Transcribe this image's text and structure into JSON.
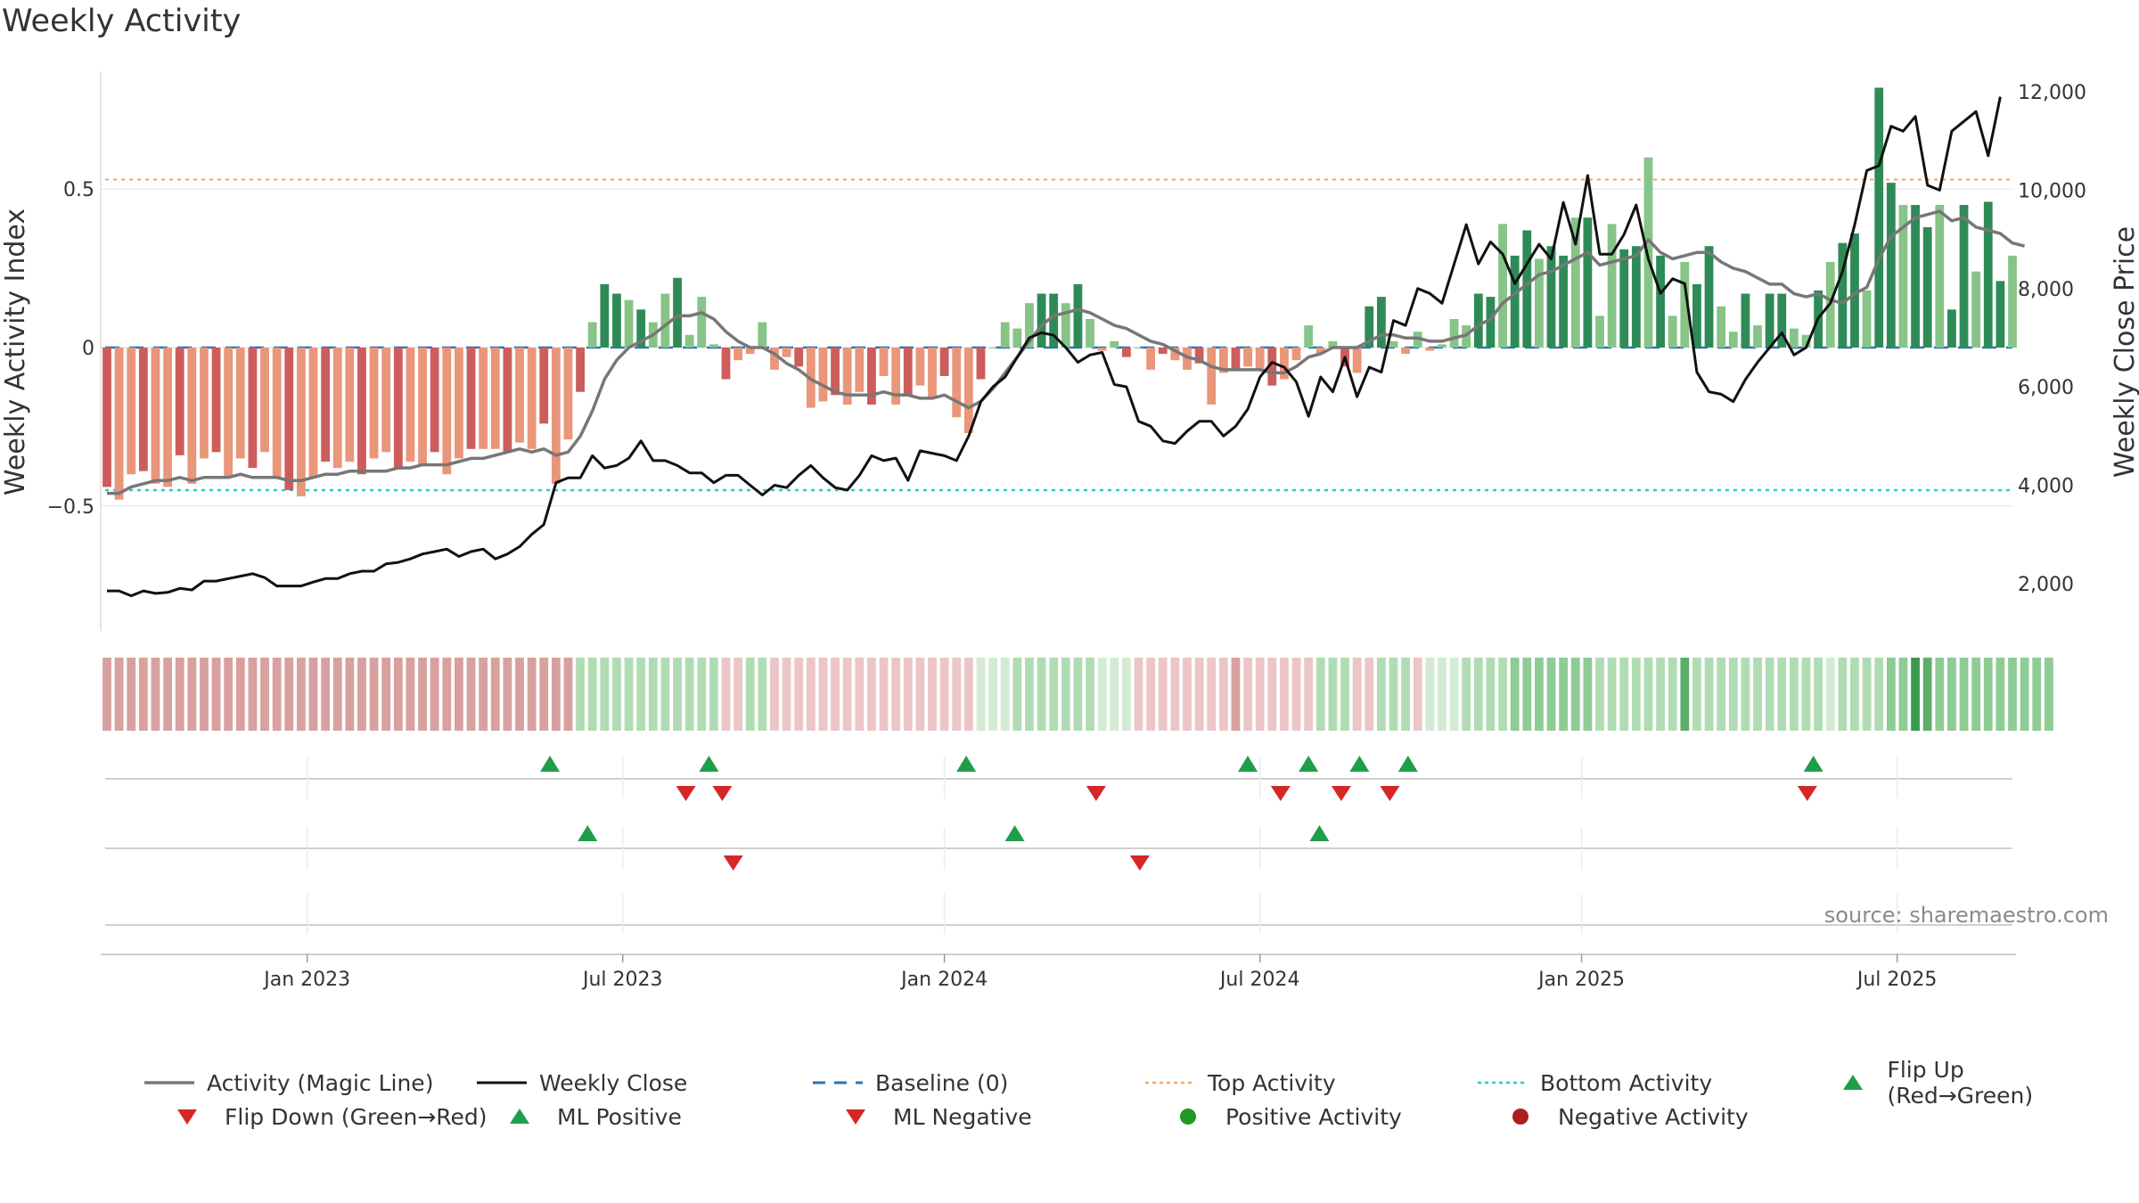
{
  "title": "Weekly Activity",
  "source_label": "source: sharemaestro.com",
  "colors": {
    "magic_line": "#777777",
    "weekly_close": "#111111",
    "baseline": "#2a72b8",
    "top_activity": "#f2a765",
    "bottom_activity": "#2bc9c9",
    "pos_strong": "#2e8b57",
    "pos_light": "#86c487",
    "neg_strong": "#cd5c5c",
    "neg_light": "#e9967a",
    "marker_up": "#1f9e4a",
    "marker_down": "#d62728"
  },
  "legend": [
    {
      "label": "Activity (Magic Line)",
      "kind": "line-solid-gray"
    },
    {
      "label": "Weekly Close",
      "kind": "line-solid-black"
    },
    {
      "label": "Baseline (0)",
      "kind": "line-dash-blue"
    },
    {
      "label": "Top Activity",
      "kind": "line-dot-orange"
    },
    {
      "label": "Bottom Activity",
      "kind": "line-dot-cyan"
    },
    {
      "label": "Flip Up (Red→Green)",
      "kind": "tri-up-green"
    },
    {
      "label": "Flip Down (Green→Red)",
      "kind": "tri-down-red"
    },
    {
      "label": "ML Positive",
      "kind": "tri-up-green"
    },
    {
      "label": "ML Negative",
      "kind": "tri-down-red"
    },
    {
      "label": "Positive Activity",
      "kind": "dot-green"
    },
    {
      "label": "Negative Activity",
      "kind": "dot-red"
    }
  ],
  "chart_data": {
    "type": "bar",
    "title": "Weekly Activity",
    "xlabel": "",
    "ylabel": "Weekly Activity Index",
    "y2label": "Weekly Close Price",
    "ylim": [
      -0.9,
      0.9
    ],
    "y2lim": [
      1000,
      12600
    ],
    "y_ticks": [
      {
        "v": 0.5,
        "label": "0.5"
      },
      {
        "v": 0,
        "label": "0"
      },
      {
        "v": -0.5,
        "label": "−0.5"
      }
    ],
    "y2_ticks": [
      {
        "v": 2000,
        "label": "2,000"
      },
      {
        "v": 4000,
        "label": "4,000"
      },
      {
        "v": 6000,
        "label": "6,000"
      },
      {
        "v": 8000,
        "label": "8,000"
      },
      {
        "v": 10000,
        "label": "10,000"
      },
      {
        "v": 12000,
        "label": "12,000"
      }
    ],
    "x_ticks": [
      {
        "week": 16.5,
        "label": "Jan 2023"
      },
      {
        "week": 42.5,
        "label": "Jul 2023"
      },
      {
        "week": 69,
        "label": "Jan 2024"
      },
      {
        "week": 95,
        "label": "Jul 2024"
      },
      {
        "week": 121.5,
        "label": "Jan 2025"
      },
      {
        "week": 147.5,
        "label": "Jul 2025"
      }
    ],
    "top_activity": 0.53,
    "bottom_activity": -0.45,
    "baseline": 0,
    "weeks": 158,
    "activity": [
      -0.44,
      -0.48,
      -0.4,
      -0.39,
      -0.43,
      -0.44,
      -0.34,
      -0.43,
      -0.35,
      -0.33,
      -0.41,
      -0.35,
      -0.38,
      -0.33,
      -0.41,
      -0.45,
      -0.47,
      -0.41,
      -0.36,
      -0.38,
      -0.36,
      -0.4,
      -0.35,
      -0.33,
      -0.38,
      -0.36,
      -0.37,
      -0.33,
      -0.4,
      -0.35,
      -0.32,
      -0.32,
      -0.32,
      -0.33,
      -0.3,
      -0.32,
      -0.24,
      -0.43,
      -0.29,
      -0.14,
      0.08,
      0.2,
      0.17,
      0.15,
      0.12,
      0.08,
      0.17,
      0.22,
      0.04,
      0.16,
      0.01,
      -0.1,
      -0.04,
      -0.02,
      0.08,
      -0.07,
      -0.03,
      -0.06,
      -0.19,
      -0.17,
      -0.15,
      -0.18,
      -0.14,
      -0.18,
      -0.09,
      -0.18,
      -0.15,
      -0.12,
      -0.16,
      -0.09,
      -0.22,
      -0.27,
      -0.1,
      0.0,
      0.08,
      0.06,
      0.14,
      0.17,
      0.17,
      0.14,
      0.2,
      0.09,
      -0.01,
      0.02,
      -0.03,
      0.0,
      -0.07,
      -0.02,
      -0.04,
      -0.07,
      -0.05,
      -0.18,
      -0.08,
      -0.07,
      -0.06,
      -0.07,
      -0.12,
      -0.1,
      -0.04,
      0.07,
      -0.02,
      0.02,
      -0.06,
      -0.08,
      0.13,
      0.16,
      0.02,
      -0.02,
      0.05,
      -0.01,
      0.01,
      0.09,
      0.07,
      0.17,
      0.16,
      0.39,
      0.29,
      0.37,
      0.28,
      0.32,
      0.29,
      0.41,
      0.41,
      0.1,
      0.39,
      0.31,
      0.32,
      0.6,
      0.29,
      0.1,
      0.27,
      0.2,
      0.32,
      0.13,
      0.05,
      0.17,
      0.07,
      0.17,
      0.17,
      0.06,
      0.04,
      0.18,
      0.27,
      0.33,
      0.36,
      0.18,
      0.82,
      0.52,
      0.45,
      0.45,
      0.38,
      0.45,
      0.12,
      0.45,
      0.24,
      0.46,
      0.21,
      0.29
    ],
    "close": [
      1850,
      1850,
      1750,
      1850,
      1800,
      1820,
      1900,
      1870,
      2050,
      2050,
      2100,
      2150,
      2200,
      2120,
      1950,
      1950,
      1950,
      2030,
      2100,
      2100,
      2200,
      2250,
      2250,
      2400,
      2430,
      2500,
      2600,
      2650,
      2700,
      2550,
      2650,
      2700,
      2500,
      2600,
      2750,
      3000,
      3200,
      4050,
      4150,
      4150,
      4600,
      4350,
      4400,
      4550,
      4900,
      4500,
      4500,
      4400,
      4250,
      4250,
      4050,
      4200,
      4200,
      4000,
      3800,
      4000,
      3950,
      4200,
      4400,
      4150,
      3950,
      3900,
      4200,
      4600,
      4500,
      4550,
      4100,
      4700,
      4650,
      4600,
      4500,
      5000,
      5700,
      6000,
      6200,
      6600,
      7000,
      7100,
      7050,
      6800,
      6500,
      6650,
      6700,
      6050,
      6000,
      5300,
      5200,
      4900,
      4850,
      5100,
      5300,
      5300,
      5000,
      5200,
      5550,
      6200,
      6500,
      6400,
      6100,
      5400,
      6200,
      5900,
      6600,
      5800,
      6400,
      6300,
      7350,
      7250,
      8000,
      7900,
      7700,
      8500,
      9300,
      8500,
      8950,
      8700,
      8100,
      8500,
      8900,
      8600,
      9750,
      8900,
      10300,
      8700,
      8700,
      9100,
      9700,
      8600,
      7900,
      8200,
      8100,
      6300,
      5900,
      5850,
      5700,
      6150,
      6500,
      6800,
      7100,
      6650,
      6800,
      7400,
      7700,
      8350,
      9300,
      10400,
      10500,
      11300,
      11200,
      11500,
      10100,
      10000,
      11200,
      11400,
      11600,
      10700,
      11900
    ],
    "magic_line": [
      -0.46,
      -0.46,
      -0.44,
      -0.43,
      -0.42,
      -0.42,
      -0.41,
      -0.42,
      -0.41,
      -0.41,
      -0.41,
      -0.4,
      -0.41,
      -0.41,
      -0.41,
      -0.42,
      -0.42,
      -0.41,
      -0.4,
      -0.4,
      -0.39,
      -0.39,
      -0.39,
      -0.39,
      -0.38,
      -0.38,
      -0.37,
      -0.37,
      -0.37,
      -0.36,
      -0.35,
      -0.35,
      -0.34,
      -0.33,
      -0.32,
      -0.33,
      -0.32,
      -0.34,
      -0.33,
      -0.28,
      -0.2,
      -0.1,
      -0.04,
      0.0,
      0.02,
      0.04,
      0.07,
      0.1,
      0.1,
      0.11,
      0.09,
      0.05,
      0.02,
      0.0,
      0.0,
      -0.02,
      -0.05,
      -0.07,
      -0.1,
      -0.12,
      -0.14,
      -0.15,
      -0.15,
      -0.15,
      -0.14,
      -0.15,
      -0.15,
      -0.16,
      -0.16,
      -0.15,
      -0.17,
      -0.19,
      -0.17,
      -0.13,
      -0.08,
      -0.03,
      0.02,
      0.07,
      0.1,
      0.11,
      0.12,
      0.11,
      0.09,
      0.07,
      0.06,
      0.04,
      0.02,
      0.01,
      -0.01,
      -0.03,
      -0.04,
      -0.06,
      -0.07,
      -0.07,
      -0.07,
      -0.07,
      -0.08,
      -0.08,
      -0.06,
      -0.03,
      -0.02,
      0.0,
      0.0,
      0.0,
      0.02,
      0.04,
      0.04,
      0.03,
      0.03,
      0.02,
      0.02,
      0.03,
      0.04,
      0.07,
      0.09,
      0.14,
      0.17,
      0.2,
      0.23,
      0.24,
      0.26,
      0.28,
      0.3,
      0.26,
      0.27,
      0.28,
      0.29,
      0.34,
      0.3,
      0.28,
      0.29,
      0.3,
      0.3,
      0.27,
      0.25,
      0.24,
      0.22,
      0.2,
      0.2,
      0.17,
      0.16,
      0.17,
      0.15,
      0.14,
      0.17,
      0.19,
      0.28,
      0.35,
      0.38,
      0.41,
      0.42,
      0.43,
      0.4,
      0.41,
      0.38,
      0.37,
      0.36,
      0.33,
      0.32
    ],
    "activity_strip": [
      -2,
      -2,
      -2,
      -2,
      -2,
      -2,
      -2,
      -2,
      -2,
      -2,
      -2,
      -2,
      -2,
      -2,
      -2,
      -2,
      -2,
      -2,
      -2,
      -2,
      -2,
      -2,
      -2,
      -2,
      -2,
      -2,
      -2,
      -2,
      -2,
      -2,
      -2,
      -2,
      -2,
      -2,
      -2,
      -2,
      -2,
      -2,
      -2,
      1,
      1,
      1,
      1,
      1,
      1,
      1,
      1,
      1,
      1,
      1,
      1,
      -1,
      -1,
      1,
      1,
      -1,
      -1,
      -1,
      -1,
      -1,
      -1,
      -1,
      -1,
      -1,
      -1,
      -1,
      -1,
      -1,
      -1,
      -1,
      -1,
      -1,
      0.5,
      0.5,
      0.5,
      1,
      1,
      1,
      1,
      1,
      1,
      1,
      0.5,
      0.5,
      0.5,
      -1,
      -1,
      -1,
      -1,
      -1,
      -1,
      -1,
      -1,
      -2,
      -1,
      -1,
      -1,
      -1,
      -1,
      -1,
      1,
      1,
      1,
      -1,
      -1,
      1,
      1,
      1,
      -1,
      0.5,
      0.5,
      0.5,
      1,
      1,
      1,
      1,
      2,
      2,
      2,
      2,
      2,
      2,
      2,
      1,
      1,
      1,
      1,
      1,
      1,
      1,
      3,
      1,
      1,
      1,
      1,
      1,
      1,
      1,
      1,
      1,
      1,
      1,
      0.5,
      1,
      1,
      1,
      1,
      2,
      2,
      4,
      3,
      2,
      2,
      2,
      2,
      2,
      2,
      2,
      2,
      2,
      2
    ],
    "flip_up": [
      36.5,
      49.6,
      70.8,
      94,
      99,
      103.2,
      107.2,
      140.6
    ],
    "flip_down": [
      47.7,
      50.7,
      81.5,
      96.7,
      101.7,
      105.7,
      140.1
    ],
    "ml_positive": [
      39.6,
      74.8,
      99.9
    ],
    "ml_negative": [
      51.6,
      85.1
    ]
  }
}
